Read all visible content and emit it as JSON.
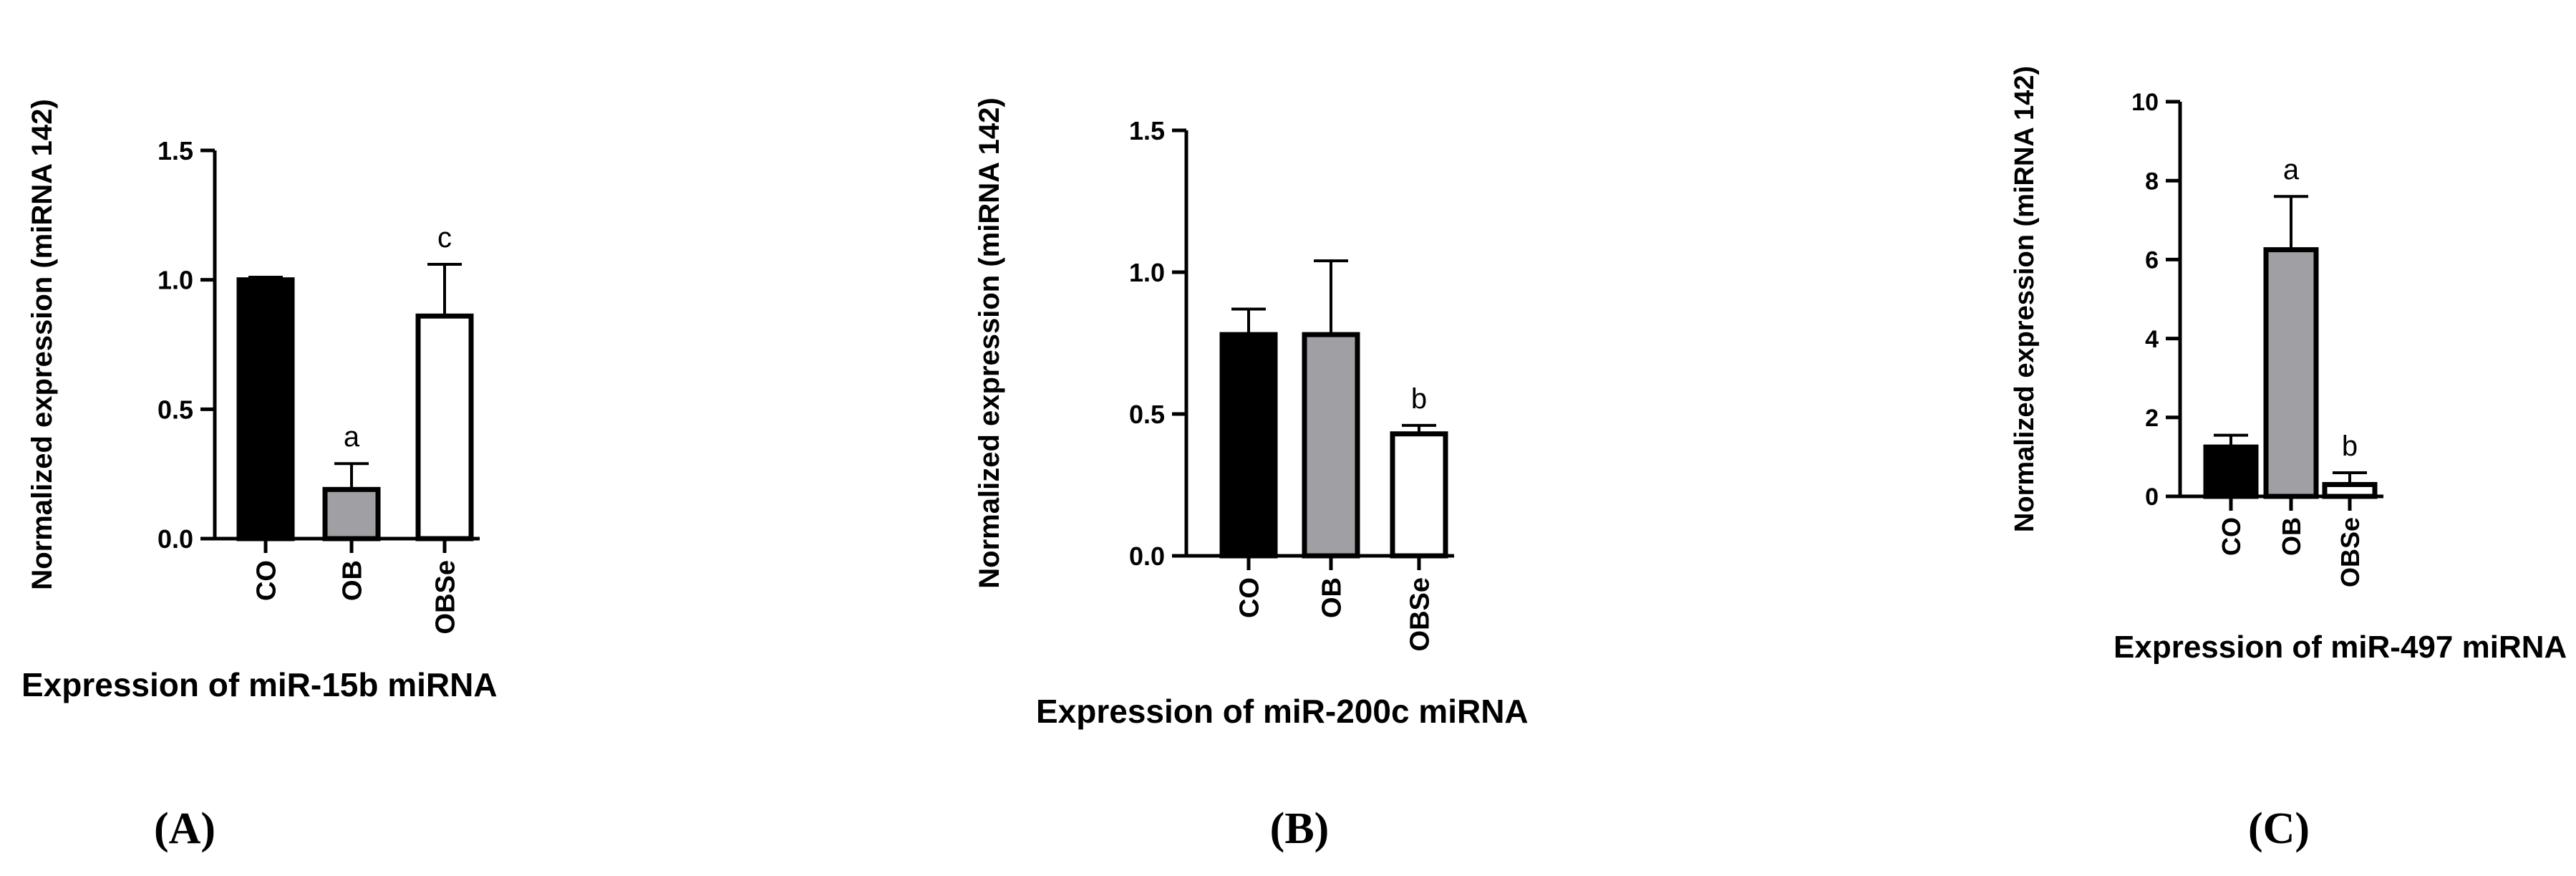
{
  "colors": {
    "black": "#000000",
    "gray": "#a0a0a4",
    "white": "#ffffff"
  },
  "chart_data": [
    {
      "type": "bar",
      "panel_label": "(A)",
      "xlabel": "Expression of miR-15b miRNA",
      "ylabel": "Normalized expression (miRNA 142)",
      "ylim": [
        0,
        1.5
      ],
      "yticks": [
        "0.0",
        "0.5",
        "1.0",
        "1.5"
      ],
      "categories": [
        "CO",
        "OB",
        "OBSe"
      ],
      "values": [
        1.0,
        0.19,
        0.86
      ],
      "errors": [
        0.01,
        0.1,
        0.2
      ],
      "annotations": [
        "",
        "a",
        "c"
      ],
      "fills": [
        "#000000",
        "#a0a0a4",
        "#ffffff"
      ]
    },
    {
      "type": "bar",
      "panel_label": "(B)",
      "xlabel": "Expression of miR-200c miRNA",
      "ylabel": "Normalized expression (miRNA 142)",
      "ylim": [
        0,
        1.5
      ],
      "yticks": [
        "0.0",
        "0.5",
        "1.0",
        "1.5"
      ],
      "categories": [
        "CO",
        "OB",
        "OBSe"
      ],
      "values": [
        0.78,
        0.78,
        0.43
      ],
      "errors": [
        0.09,
        0.26,
        0.03
      ],
      "annotations": [
        "",
        "",
        "b"
      ],
      "fills": [
        "#000000",
        "#a0a0a4",
        "#ffffff"
      ]
    },
    {
      "type": "bar",
      "panel_label": "(C)",
      "xlabel": "Expression of miR-497 miRNA",
      "ylabel": "Normalized expression (miRNA 142)",
      "ylim": [
        0,
        10
      ],
      "yticks": [
        "0",
        "2",
        "4",
        "6",
        "8",
        "10"
      ],
      "categories": [
        "CO",
        "OB",
        "OBSe"
      ],
      "values": [
        1.25,
        6.25,
        0.3
      ],
      "errors": [
        0.3,
        1.35,
        0.3
      ],
      "annotations": [
        "",
        "a",
        "b"
      ],
      "fills": [
        "#000000",
        "#a0a0a4",
        "#ffffff"
      ]
    }
  ]
}
